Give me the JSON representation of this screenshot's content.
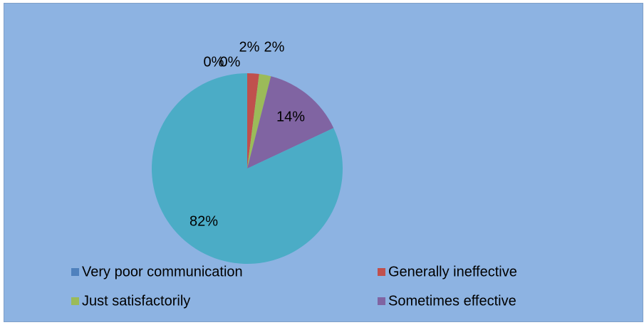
{
  "chart_data": {
    "type": "pie",
    "categories": [
      "Very poor communication",
      "Generally ineffective",
      "Just satisfactorily",
      "Sometimes effective",
      null,
      null
    ],
    "values": [
      0,
      2,
      2,
      14,
      82,
      0
    ],
    "value_labels": [
      "0%",
      "2%",
      "2%",
      "14%",
      "82%",
      "0%"
    ],
    "colors": [
      "#4f81bd",
      "#c0504d",
      "#9bbb59",
      "#8064a2",
      "#4bacc6",
      "#f79646"
    ],
    "legend": "bottom"
  }
}
